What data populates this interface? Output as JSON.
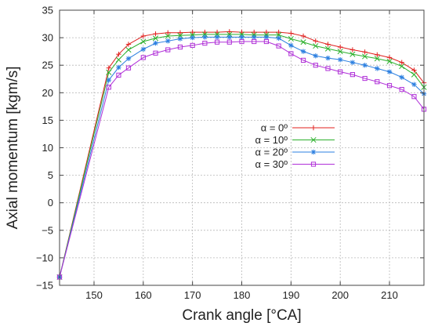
{
  "chart_data": {
    "type": "line",
    "title": "",
    "xlabel": "Crank angle [°CA]",
    "ylabel": "Axial momentum [kgm/s]",
    "xlim": [
      143,
      217
    ],
    "ylim": [
      -15,
      35
    ],
    "xticks": [
      150,
      160,
      170,
      180,
      190,
      200,
      210
    ],
    "yticks": [
      -15,
      -10,
      -5,
      0,
      5,
      10,
      15,
      20,
      25,
      30,
      35
    ],
    "grid": true,
    "legend": "center-right",
    "series": [
      {
        "name": "α = 0º",
        "color": "#e0201e",
        "marker": "plus",
        "x": [
          143,
          153,
          155,
          157,
          160,
          162.5,
          165,
          167.5,
          170,
          172.5,
          175,
          177.5,
          180,
          182.5,
          185,
          187.5,
          190,
          192.5,
          195,
          197.5,
          200,
          202.5,
          205,
          207.5,
          210,
          212.5,
          215,
          217
        ],
        "y": [
          -13.5,
          24.5,
          27.0,
          28.8,
          30.3,
          30.7,
          30.9,
          30.9,
          31.0,
          31.0,
          31.0,
          31.1,
          31.0,
          31.0,
          31.0,
          31.0,
          30.8,
          30.3,
          29.4,
          28.8,
          28.3,
          27.8,
          27.4,
          26.9,
          26.4,
          25.5,
          24.1,
          21.8
        ]
      },
      {
        "name": "α = 10º",
        "color": "#2cb02c",
        "marker": "x",
        "x": [
          143,
          153,
          155,
          157,
          160,
          162.5,
          165,
          167.5,
          170,
          172.5,
          175,
          177.5,
          180,
          182.5,
          185,
          187.5,
          190,
          192.5,
          195,
          197.5,
          200,
          202.5,
          205,
          207.5,
          210,
          212.5,
          215,
          217
        ],
        "y": [
          -13.5,
          23.7,
          26.0,
          27.8,
          29.3,
          29.9,
          30.3,
          30.4,
          30.5,
          30.6,
          30.6,
          30.6,
          30.6,
          30.5,
          30.5,
          30.5,
          29.8,
          29.2,
          28.5,
          28.0,
          27.5,
          27.0,
          26.6,
          26.2,
          25.7,
          24.8,
          23.3,
          21.0
        ]
      },
      {
        "name": "α = 20º",
        "color": "#2b7fe0",
        "marker": "star",
        "x": [
          143,
          153,
          155,
          157,
          160,
          162.5,
          165,
          167.5,
          170,
          172.5,
          175,
          177.5,
          180,
          182.5,
          185,
          187.5,
          190,
          192.5,
          195,
          197.5,
          200,
          202.5,
          205,
          207.5,
          210,
          212.5,
          215,
          217
        ],
        "y": [
          -13.5,
          22.3,
          24.6,
          26.2,
          27.9,
          29.0,
          29.4,
          29.8,
          30.0,
          30.1,
          30.1,
          30.1,
          30.1,
          30.1,
          30.1,
          29.9,
          28.6,
          27.5,
          26.7,
          26.3,
          26.0,
          25.5,
          25.0,
          24.4,
          23.8,
          22.8,
          21.5,
          19.8
        ]
      },
      {
        "name": "α = 30º",
        "color": "#b030d8",
        "marker": "square",
        "x": [
          143,
          153,
          155,
          157,
          160,
          162.5,
          165,
          167.5,
          170,
          172.5,
          175,
          177.5,
          180,
          182.5,
          185,
          187.5,
          190,
          192.5,
          195,
          197.5,
          200,
          202.5,
          205,
          207.5,
          210,
          212.5,
          215,
          217
        ],
        "y": [
          -13.5,
          21.0,
          23.2,
          24.5,
          26.4,
          27.2,
          27.8,
          28.3,
          28.6,
          29.0,
          29.2,
          29.2,
          29.3,
          29.3,
          29.3,
          28.5,
          27.1,
          25.9,
          25.0,
          24.4,
          23.8,
          23.3,
          22.6,
          22.0,
          21.3,
          20.6,
          19.3,
          17.0
        ]
      }
    ]
  }
}
